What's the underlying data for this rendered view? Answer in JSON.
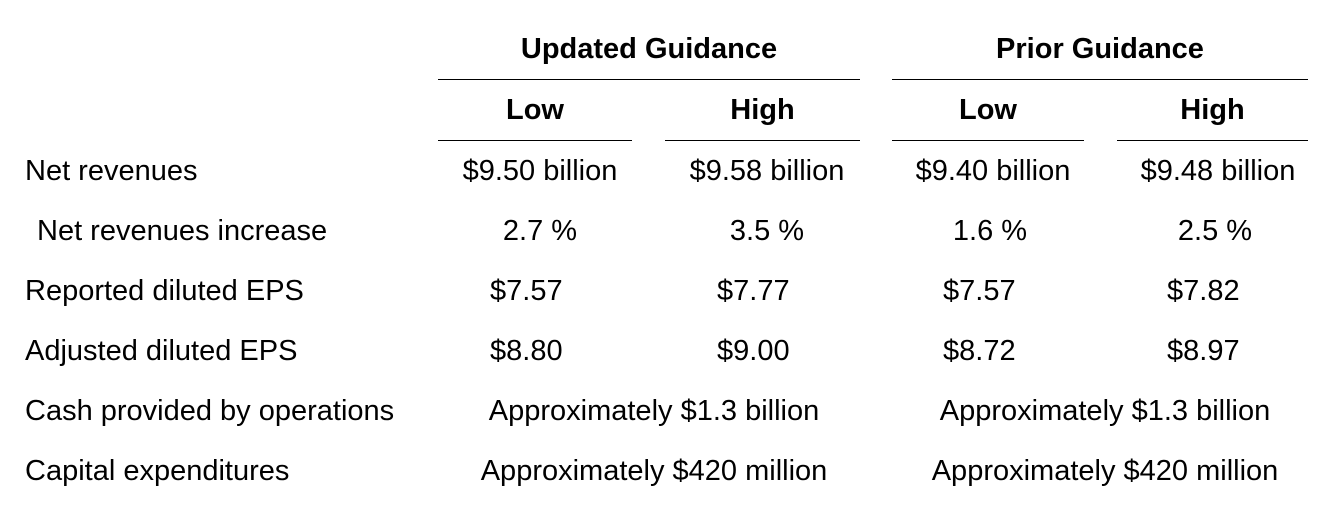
{
  "header": {
    "group_updated": "Updated Guidance",
    "group_prior": "Prior Guidance",
    "low": "Low",
    "high": "High"
  },
  "rows": [
    {
      "label": "Net revenues",
      "u_low": "$9.50 billion",
      "u_high": "$9.58 billion",
      "p_low": "$9.40 billion",
      "p_high": "$9.48 billion"
    },
    {
      "label": "Net revenues increase",
      "u_low": "2.7 %",
      "u_high": "3.5 %",
      "p_low": "1.6 %",
      "p_high": "2.5 %"
    },
    {
      "label": "Reported diluted EPS",
      "u_low": "$7.57",
      "u_high": "$7.77",
      "p_low": "$7.57",
      "p_high": "$7.82"
    },
    {
      "label": "Adjusted diluted EPS",
      "u_low": "$8.80",
      "u_high": "$9.00",
      "p_low": "$8.72",
      "p_high": "$8.97"
    },
    {
      "label": "Cash provided by operations",
      "u_span": "Approximately $1.3 billion",
      "p_span": "Approximately $1.3 billion"
    },
    {
      "label": "Capital expenditures",
      "u_span": "Approximately $420 million",
      "p_span": "Approximately $420 million"
    }
  ]
}
